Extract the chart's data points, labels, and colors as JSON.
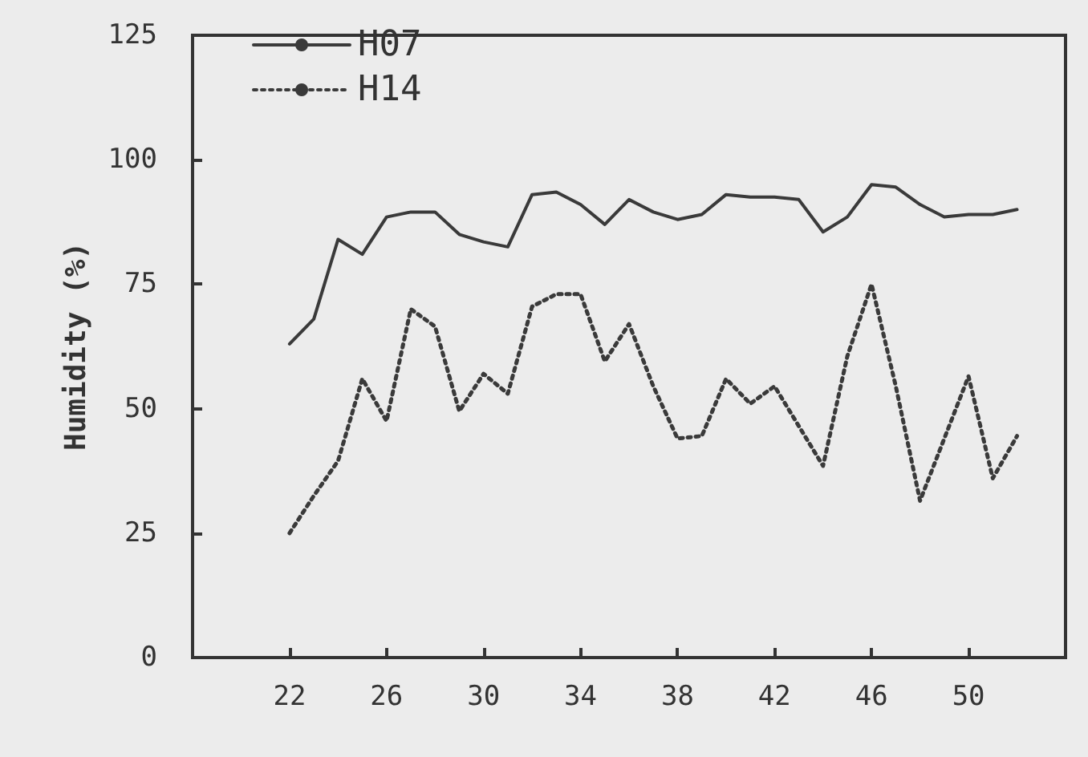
{
  "chart_data": {
    "type": "line",
    "ylabel": "Humidity (%)",
    "x": [
      22,
      23,
      24,
      25,
      26,
      27,
      28,
      29,
      30,
      31,
      32,
      33,
      34,
      35,
      36,
      37,
      38,
      39,
      40,
      41,
      42,
      43,
      44,
      45,
      46,
      47,
      48,
      49,
      50,
      51,
      52
    ],
    "series": [
      {
        "name": "H07",
        "color": "#3a3a3a",
        "line_style": "solid",
        "values": [
          63,
          68,
          84,
          81,
          88.5,
          89.5,
          89.5,
          85,
          83.5,
          82.5,
          93,
          93.5,
          91,
          87,
          92,
          89.5,
          88,
          89,
          93,
          92.5,
          92.5,
          92,
          85.5,
          88.5,
          95,
          94.5,
          91,
          88.5,
          89,
          89,
          90
        ]
      },
      {
        "name": "H14",
        "color": "#3a3a3a",
        "line_style": "dotted",
        "values": [
          25,
          32.5,
          39.5,
          56,
          47.5,
          70,
          66.5,
          49.5,
          57,
          53,
          70.5,
          73,
          73,
          59.5,
          67,
          54.5,
          44,
          44.5,
          56,
          51,
          54.5,
          46.5,
          38.5,
          60.5,
          75,
          54.5,
          31.5,
          44,
          56.5,
          36,
          44.5
        ]
      }
    ],
    "xlim": [
      18,
      54
    ],
    "xticks": [
      22,
      26,
      30,
      34,
      38,
      42,
      46,
      50
    ],
    "ylim": [
      0,
      125
    ],
    "yticks": [
      0,
      25,
      50,
      75,
      100,
      125
    ],
    "grid": false,
    "legend": "top left",
    "marker": "none"
  }
}
